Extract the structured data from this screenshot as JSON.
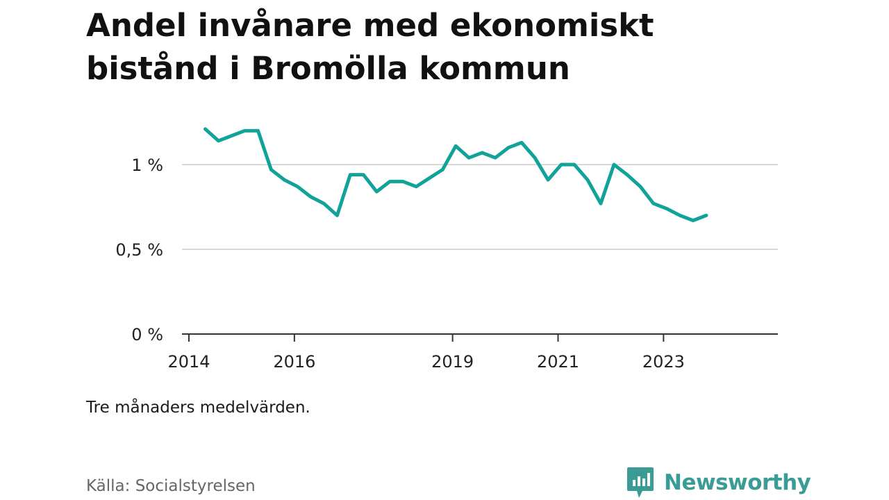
{
  "title": "Andel invånare med ekonomiskt bistånd i Bromölla kommun",
  "note": "Tre månaders medelvärden.",
  "source": "Källa: Socialstyrelsen",
  "brand": {
    "name": "Newsworthy",
    "color": "#3a9c94",
    "logo_icon": "newsworthy-logo-icon"
  },
  "chart_data": {
    "type": "line",
    "title": "Andel invånare med ekonomiskt bistånd i Bromölla kommun",
    "xlabel": "",
    "ylabel": "",
    "ylim": [
      0,
      1.5
    ],
    "xlim": [
      2014,
      2025.3
    ],
    "yticks": [
      {
        "value": 0,
        "label": "0 %"
      },
      {
        "value": 0.5,
        "label": "0,5 %"
      },
      {
        "value": 1,
        "label": "1 %"
      }
    ],
    "xticks": [
      {
        "value": 2014,
        "label": "2014"
      },
      {
        "value": 2016,
        "label": "2016"
      },
      {
        "value": 2019,
        "label": "2019"
      },
      {
        "value": 2021,
        "label": "2021"
      },
      {
        "value": 2023,
        "label": "2023"
      }
    ],
    "grid": true,
    "color": "#11a39a",
    "series": [
      {
        "x": [
          2014.31,
          2014.56,
          2014.81,
          2015.06,
          2015.31,
          2015.56,
          2015.81,
          2016.06,
          2016.31,
          2016.56,
          2016.81,
          2017.06,
          2017.31,
          2017.56,
          2017.81,
          2018.06,
          2018.31,
          2018.56,
          2018.81,
          2019.06,
          2019.31,
          2019.56,
          2019.81,
          2020.06,
          2020.31,
          2020.56,
          2020.81,
          2021.06,
          2021.31,
          2021.56,
          2021.81,
          2022.06,
          2022.31,
          2022.56,
          2022.81,
          2023.06,
          2023.31,
          2023.56,
          2023.81
        ],
        "values": [
          1.21,
          1.14,
          1.17,
          1.2,
          1.2,
          0.97,
          0.91,
          0.87,
          0.81,
          0.77,
          0.7,
          0.94,
          0.94,
          0.84,
          0.9,
          0.9,
          0.87,
          0.92,
          0.97,
          1.11,
          1.04,
          1.07,
          1.04,
          1.1,
          1.13,
          1.04,
          0.91,
          1.0,
          1.0,
          0.91,
          0.77,
          1.0,
          0.94,
          0.87,
          0.77,
          0.74,
          0.7,
          0.67,
          0.7
        ]
      }
    ]
  }
}
